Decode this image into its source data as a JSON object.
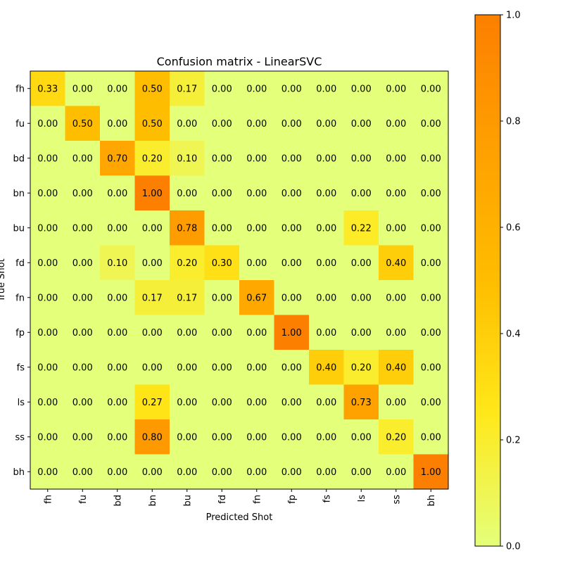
{
  "chart_data": {
    "type": "heatmap",
    "title": "Confusion matrix - LinearSVC",
    "xlabel": "Predicted Shot",
    "ylabel": "True Shot",
    "x_categories": [
      "fh",
      "fu",
      "bd",
      "bn",
      "bu",
      "fd",
      "fn",
      "fp",
      "fs",
      "ls",
      "ss",
      "bh"
    ],
    "y_categories": [
      "fh",
      "fu",
      "bd",
      "bn",
      "bu",
      "fd",
      "fn",
      "fp",
      "fs",
      "ls",
      "ss",
      "bh"
    ],
    "values": [
      [
        0.33,
        0.0,
        0.0,
        0.5,
        0.17,
        0.0,
        0.0,
        0.0,
        0.0,
        0.0,
        0.0,
        0.0
      ],
      [
        0.0,
        0.5,
        0.0,
        0.5,
        0.0,
        0.0,
        0.0,
        0.0,
        0.0,
        0.0,
        0.0,
        0.0
      ],
      [
        0.0,
        0.0,
        0.7,
        0.2,
        0.1,
        0.0,
        0.0,
        0.0,
        0.0,
        0.0,
        0.0,
        0.0
      ],
      [
        0.0,
        0.0,
        0.0,
        1.0,
        0.0,
        0.0,
        0.0,
        0.0,
        0.0,
        0.0,
        0.0,
        0.0
      ],
      [
        0.0,
        0.0,
        0.0,
        0.0,
        0.78,
        0.0,
        0.0,
        0.0,
        0.0,
        0.22,
        0.0,
        0.0
      ],
      [
        0.0,
        0.0,
        0.1,
        0.0,
        0.2,
        0.3,
        0.0,
        0.0,
        0.0,
        0.0,
        0.4,
        0.0
      ],
      [
        0.0,
        0.0,
        0.0,
        0.17,
        0.17,
        0.0,
        0.67,
        0.0,
        0.0,
        0.0,
        0.0,
        0.0
      ],
      [
        0.0,
        0.0,
        0.0,
        0.0,
        0.0,
        0.0,
        0.0,
        1.0,
        0.0,
        0.0,
        0.0,
        0.0
      ],
      [
        0.0,
        0.0,
        0.0,
        0.0,
        0.0,
        0.0,
        0.0,
        0.0,
        0.4,
        0.2,
        0.4,
        0.0
      ],
      [
        0.0,
        0.0,
        0.0,
        0.27,
        0.0,
        0.0,
        0.0,
        0.0,
        0.0,
        0.73,
        0.0,
        0.0
      ],
      [
        0.0,
        0.0,
        0.0,
        0.8,
        0.0,
        0.0,
        0.0,
        0.0,
        0.0,
        0.0,
        0.2,
        0.0
      ],
      [
        0.0,
        0.0,
        0.0,
        0.0,
        0.0,
        0.0,
        0.0,
        0.0,
        0.0,
        0.0,
        0.0,
        1.0
      ]
    ],
    "value_format": "2 decimals",
    "colorbar": {
      "range": [
        0.0,
        1.0
      ],
      "ticks": [
        "0.0",
        "0.2",
        "0.4",
        "0.6",
        "0.8",
        "1.0"
      ],
      "colormap": "Wistia",
      "colors": [
        "#e4ff7a",
        "#ffe81a",
        "#ffbd00",
        "#ffa000",
        "#fc7f00"
      ]
    },
    "grid": false
  }
}
